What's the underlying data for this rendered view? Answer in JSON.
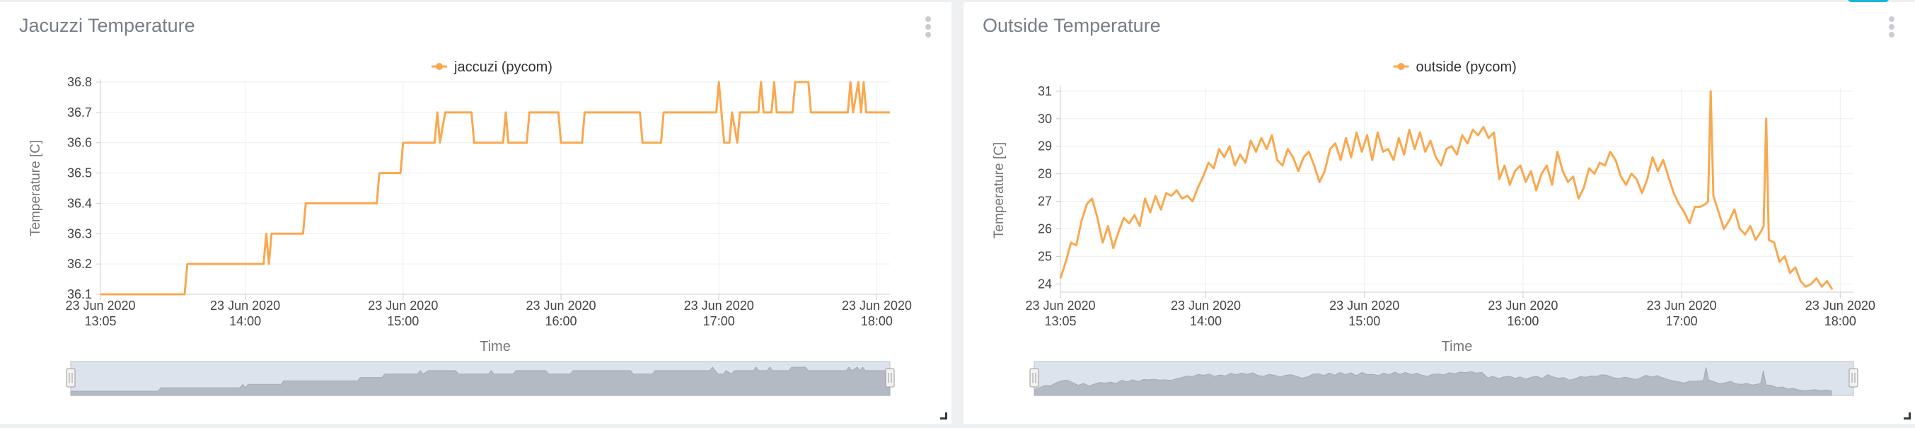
{
  "panels": [
    {
      "title": "Jacuzzi Temperature",
      "menu_icon": "kebab-menu-icon"
    },
    {
      "title": "Outside Temperature",
      "menu_icon": "kebab-menu-icon"
    }
  ],
  "colors": {
    "series": "#f9a84f",
    "grid": "#eeeeee",
    "axis": "#cccccc",
    "navigator_bg": "#dde3ec",
    "navigator_series": "#b3bac4"
  },
  "chart_data": [
    {
      "type": "line",
      "title": "",
      "legend": "top-center",
      "grid": true,
      "xlabel": "Time",
      "ylabel": "Temperature [C]",
      "xlim": [
        "2020-06-23 13:05",
        "2020-06-23 18:05"
      ],
      "ylim": [
        36.1,
        36.8
      ],
      "yticks": [
        "36.1",
        "36.2",
        "36.3",
        "36.4",
        "36.5",
        "36.6",
        "36.7",
        "36.8"
      ],
      "xticks": [
        {
          "time": "13:05",
          "date": "23 Jun 2020",
          "label": "13:05"
        },
        {
          "time": "14:00",
          "date": "23 Jun 2020",
          "label": "14:00"
        },
        {
          "time": "15:00",
          "date": "23 Jun 2020",
          "label": "15:00"
        },
        {
          "time": "16:00",
          "date": "23 Jun 2020",
          "label": "16:00"
        },
        {
          "time": "17:00",
          "date": "23 Jun 2020",
          "label": "17:00"
        },
        {
          "time": "18:00",
          "date": "23 Jun 2020",
          "label": "18:00"
        }
      ],
      "series": [
        {
          "name": "jaccuzi  (pycom)",
          "points": [
            [
              "13:05",
              36.1
            ],
            [
              "13:37",
              36.1
            ],
            [
              "13:38",
              36.2
            ],
            [
              "14:07",
              36.2
            ],
            [
              "14:08",
              36.3
            ],
            [
              "14:09",
              36.2
            ],
            [
              "14:10",
              36.3
            ],
            [
              "14:22",
              36.3
            ],
            [
              "14:23",
              36.4
            ],
            [
              "14:50",
              36.4
            ],
            [
              "14:51",
              36.5
            ],
            [
              "14:59",
              36.5
            ],
            [
              "15:00",
              36.6
            ],
            [
              "15:12",
              36.6
            ],
            [
              "15:13",
              36.7
            ],
            [
              "15:14",
              36.6
            ],
            [
              "15:16",
              36.7
            ],
            [
              "15:26",
              36.7
            ],
            [
              "15:27",
              36.6
            ],
            [
              "15:38",
              36.6
            ],
            [
              "15:39",
              36.7
            ],
            [
              "15:40",
              36.6
            ],
            [
              "15:47",
              36.6
            ],
            [
              "15:48",
              36.7
            ],
            [
              "15:59",
              36.7
            ],
            [
              "16:00",
              36.6
            ],
            [
              "16:08",
              36.6
            ],
            [
              "16:09",
              36.7
            ],
            [
              "16:30",
              36.7
            ],
            [
              "16:31",
              36.6
            ],
            [
              "16:38",
              36.6
            ],
            [
              "16:39",
              36.7
            ],
            [
              "16:59",
              36.7
            ],
            [
              "17:00",
              36.8
            ],
            [
              "17:02",
              36.6
            ],
            [
              "17:04",
              36.6
            ],
            [
              "17:05",
              36.7
            ],
            [
              "17:07",
              36.6
            ],
            [
              "17:08",
              36.7
            ],
            [
              "17:15",
              36.7
            ],
            [
              "17:16",
              36.8
            ],
            [
              "17:17",
              36.7
            ],
            [
              "17:20",
              36.7
            ],
            [
              "17:21",
              36.8
            ],
            [
              "17:22",
              36.7
            ],
            [
              "17:28",
              36.7
            ],
            [
              "17:29",
              36.8
            ],
            [
              "17:34",
              36.8
            ],
            [
              "17:35",
              36.7
            ],
            [
              "17:49",
              36.7
            ],
            [
              "17:50",
              36.8
            ],
            [
              "17:51",
              36.7
            ],
            [
              "17:53",
              36.8
            ],
            [
              "17:54",
              36.7
            ],
            [
              "17:55",
              36.8
            ],
            [
              "17:56",
              36.7
            ],
            [
              "18:05",
              36.7
            ]
          ]
        }
      ]
    },
    {
      "type": "line",
      "title": "",
      "legend": "top-center",
      "grid": true,
      "xlabel": "Time",
      "ylabel": "Temperature [C]",
      "xlim": [
        "2020-06-23 13:05",
        "2020-06-23 18:05"
      ],
      "ylim": [
        23.7,
        31.1
      ],
      "yticks": [
        "24",
        "25",
        "26",
        "27",
        "28",
        "29",
        "30",
        "31"
      ],
      "xticks": [
        {
          "time": "13:05",
          "date": "23 Jun 2020",
          "label": "13:05"
        },
        {
          "time": "14:00",
          "date": "23 Jun 2020",
          "label": "14:00"
        },
        {
          "time": "15:00",
          "date": "23 Jun 2020",
          "label": "15:00"
        },
        {
          "time": "16:00",
          "date": "23 Jun 2020",
          "label": "16:00"
        },
        {
          "time": "17:00",
          "date": "23 Jun 2020",
          "label": "17:00"
        },
        {
          "time": "18:00",
          "date": "23 Jun 2020",
          "label": "18:00"
        }
      ],
      "series": [
        {
          "name": "outside  (pycom)",
          "points": [
            [
              "13:05",
              24.2
            ],
            [
              "13:07",
              24.8
            ],
            [
              "13:09",
              25.5
            ],
            [
              "13:11",
              25.4
            ],
            [
              "13:13",
              26.3
            ],
            [
              "13:15",
              26.9
            ],
            [
              "13:17",
              27.1
            ],
            [
              "13:19",
              26.4
            ],
            [
              "13:21",
              25.5
            ],
            [
              "13:23",
              26.1
            ],
            [
              "13:25",
              25.3
            ],
            [
              "13:27",
              25.9
            ],
            [
              "13:29",
              26.4
            ],
            [
              "13:31",
              26.2
            ],
            [
              "13:33",
              26.5
            ],
            [
              "13:35",
              26.1
            ],
            [
              "13:37",
              27.1
            ],
            [
              "13:39",
              26.6
            ],
            [
              "13:41",
              27.2
            ],
            [
              "13:43",
              26.7
            ],
            [
              "13:45",
              27.3
            ],
            [
              "13:47",
              27.2
            ],
            [
              "13:49",
              27.4
            ],
            [
              "13:51",
              27.1
            ],
            [
              "13:53",
              27.2
            ],
            [
              "13:55",
              27.0
            ],
            [
              "13:57",
              27.5
            ],
            [
              "13:59",
              27.9
            ],
            [
              "14:01",
              28.4
            ],
            [
              "14:03",
              28.2
            ],
            [
              "14:05",
              28.9
            ],
            [
              "14:07",
              28.6
            ],
            [
              "14:09",
              29.0
            ],
            [
              "14:11",
              28.3
            ],
            [
              "14:13",
              28.7
            ],
            [
              "14:15",
              28.4
            ],
            [
              "14:17",
              29.2
            ],
            [
              "14:19",
              28.8
            ],
            [
              "14:21",
              29.3
            ],
            [
              "14:23",
              28.9
            ],
            [
              "14:25",
              29.4
            ],
            [
              "14:27",
              28.5
            ],
            [
              "14:29",
              28.3
            ],
            [
              "14:31",
              28.9
            ],
            [
              "14:33",
              28.6
            ],
            [
              "14:35",
              28.1
            ],
            [
              "14:37",
              28.6
            ],
            [
              "14:39",
              28.8
            ],
            [
              "14:41",
              28.3
            ],
            [
              "14:43",
              27.7
            ],
            [
              "14:45",
              28.1
            ],
            [
              "14:47",
              28.9
            ],
            [
              "14:49",
              29.1
            ],
            [
              "14:51",
              28.5
            ],
            [
              "14:53",
              29.3
            ],
            [
              "14:55",
              28.6
            ],
            [
              "14:57",
              29.5
            ],
            [
              "14:59",
              28.8
            ],
            [
              "15:01",
              29.4
            ],
            [
              "15:03",
              28.5
            ],
            [
              "15:05",
              29.5
            ],
            [
              "15:07",
              28.8
            ],
            [
              "15:09",
              28.9
            ],
            [
              "15:11",
              28.5
            ],
            [
              "15:13",
              29.3
            ],
            [
              "15:15",
              28.7
            ],
            [
              "15:17",
              29.6
            ],
            [
              "15:19",
              28.9
            ],
            [
              "15:21",
              29.5
            ],
            [
              "15:23",
              28.8
            ],
            [
              "15:25",
              29.2
            ],
            [
              "15:27",
              28.6
            ],
            [
              "15:29",
              28.3
            ],
            [
              "15:31",
              28.9
            ],
            [
              "15:33",
              29.0
            ],
            [
              "15:35",
              28.7
            ],
            [
              "15:37",
              29.4
            ],
            [
              "15:39",
              29.1
            ],
            [
              "15:41",
              29.6
            ],
            [
              "15:43",
              29.4
            ],
            [
              "15:45",
              29.7
            ],
            [
              "15:47",
              29.3
            ],
            [
              "15:49",
              29.5
            ],
            [
              "15:51",
              27.8
            ],
            [
              "15:53",
              28.3
            ],
            [
              "15:55",
              27.6
            ],
            [
              "15:57",
              28.1
            ],
            [
              "15:59",
              28.3
            ],
            [
              "16:01",
              27.7
            ],
            [
              "16:03",
              28.1
            ],
            [
              "16:05",
              27.4
            ],
            [
              "16:07",
              28.0
            ],
            [
              "16:09",
              28.3
            ],
            [
              "16:11",
              27.6
            ],
            [
              "16:13",
              28.8
            ],
            [
              "16:15",
              28.1
            ],
            [
              "16:17",
              27.7
            ],
            [
              "16:19",
              27.9
            ],
            [
              "16:21",
              27.1
            ],
            [
              "16:23",
              27.5
            ],
            [
              "16:25",
              28.2
            ],
            [
              "16:27",
              28.0
            ],
            [
              "16:29",
              28.4
            ],
            [
              "16:31",
              28.3
            ],
            [
              "16:33",
              28.8
            ],
            [
              "16:35",
              28.5
            ],
            [
              "16:37",
              27.9
            ],
            [
              "16:39",
              27.6
            ],
            [
              "16:41",
              28.0
            ],
            [
              "16:43",
              27.8
            ],
            [
              "16:45",
              27.3
            ],
            [
              "16:47",
              27.8
            ],
            [
              "16:49",
              28.6
            ],
            [
              "16:51",
              28.1
            ],
            [
              "16:53",
              28.5
            ],
            [
              "16:55",
              27.9
            ],
            [
              "16:57",
              27.3
            ],
            [
              "16:59",
              26.9
            ],
            [
              "17:01",
              26.6
            ],
            [
              "17:03",
              26.2
            ],
            [
              "17:05",
              26.8
            ],
            [
              "17:07",
              26.8
            ],
            [
              "17:09",
              26.9
            ],
            [
              "17:10",
              27.0
            ],
            [
              "17:11",
              31.0
            ],
            [
              "17:12",
              27.2
            ],
            [
              "17:14",
              26.6
            ],
            [
              "17:16",
              26.0
            ],
            [
              "17:18",
              26.3
            ],
            [
              "17:20",
              26.7
            ],
            [
              "17:22",
              26.0
            ],
            [
              "17:24",
              25.8
            ],
            [
              "17:26",
              26.1
            ],
            [
              "17:28",
              25.6
            ],
            [
              "17:30",
              25.9
            ],
            [
              "17:31",
              26.1
            ],
            [
              "17:32",
              30.0
            ],
            [
              "17:33",
              25.6
            ],
            [
              "17:35",
              25.5
            ],
            [
              "17:37",
              24.8
            ],
            [
              "17:39",
              25.0
            ],
            [
              "17:41",
              24.4
            ],
            [
              "17:43",
              24.6
            ],
            [
              "17:45",
              24.1
            ],
            [
              "17:47",
              23.9
            ],
            [
              "17:49",
              24.0
            ],
            [
              "17:51",
              24.2
            ],
            [
              "17:53",
              23.9
            ],
            [
              "17:55",
              24.1
            ],
            [
              "17:57",
              23.8
            ]
          ]
        }
      ]
    }
  ]
}
